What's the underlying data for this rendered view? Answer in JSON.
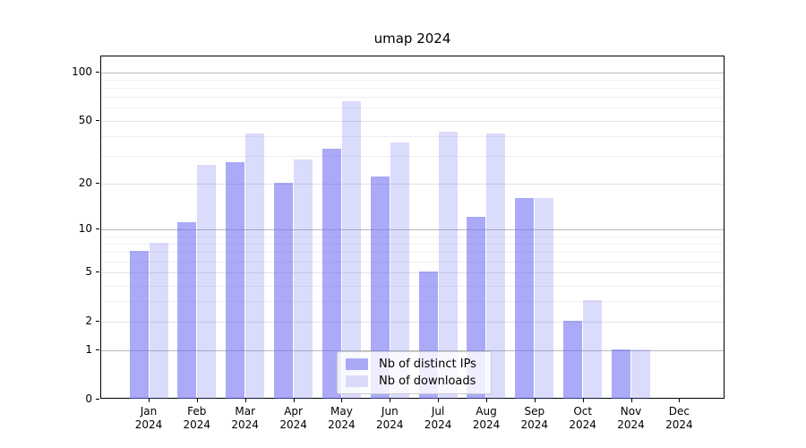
{
  "title": "umap 2024",
  "chart_data": {
    "type": "bar",
    "title": "umap 2024",
    "categories": [
      "Jan 2024",
      "Feb 2024",
      "Mar 2024",
      "Apr 2024",
      "May 2024",
      "Jun 2024",
      "Jul 2024",
      "Aug 2024",
      "Sep 2024",
      "Oct 2024",
      "Nov 2024",
      "Dec 2024"
    ],
    "series": [
      {
        "name": "Nb of distinct IPs",
        "color": "#a9a9f7",
        "fill": "rgba(103,103,243,0.56)",
        "values": [
          7,
          11,
          27,
          20,
          33,
          22,
          5,
          12,
          16,
          2,
          1,
          0
        ]
      },
      {
        "name": "Nb of downloads",
        "color": "#dbdbf9",
        "fill": "rgba(103,103,243,0.24)",
        "values": [
          8,
          26,
          41,
          28,
          65,
          36,
          42,
          41,
          16,
          3,
          1,
          0
        ]
      }
    ],
    "xlabel": "",
    "ylabel": "",
    "y_scale": "log1p",
    "y_ticks": [
      0,
      1,
      2,
      5,
      10,
      20,
      50,
      100
    ],
    "y_minor_ticks": [
      3,
      4,
      6,
      7,
      8,
      9,
      30,
      40,
      60,
      70,
      80,
      90
    ],
    "ylim": [
      0,
      125
    ],
    "grid": true,
    "legend_position": "lower center",
    "colors": {
      "decade_gridline": "#b9b9b9",
      "labeled_gridline": "#e3e3e3",
      "minor_gridline": "#efefef",
      "axis": "#000000"
    }
  }
}
